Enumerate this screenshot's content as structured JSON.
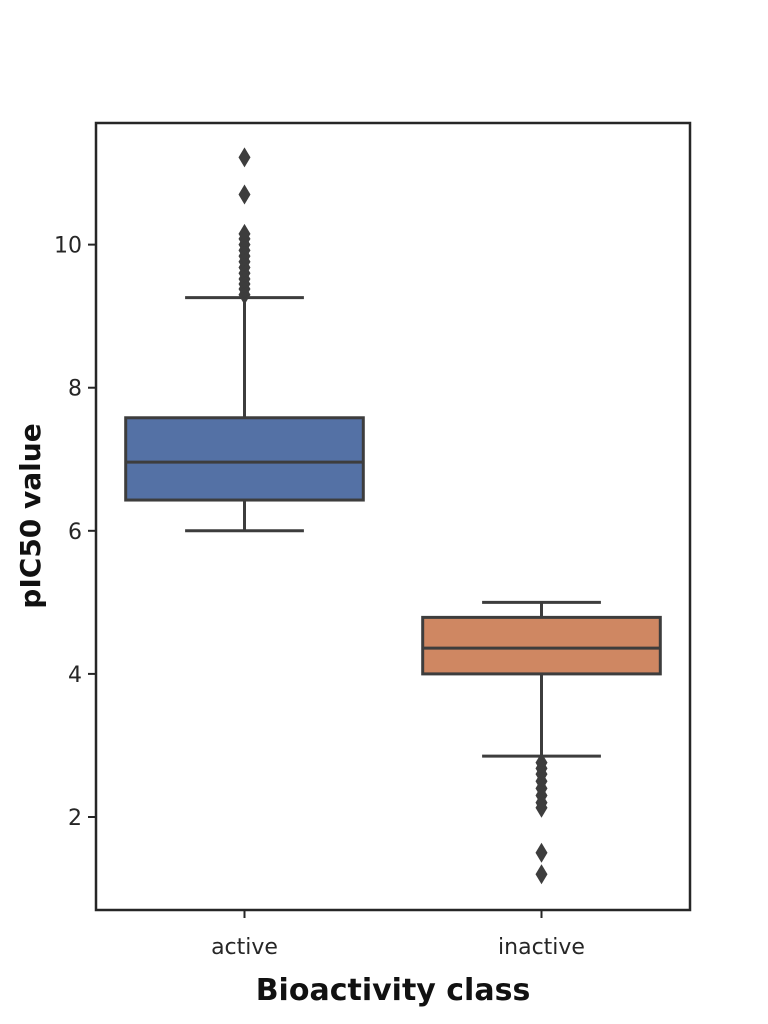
{
  "chart_data": {
    "type": "box",
    "xlabel": "Bioactivity class",
    "ylabel": "pIC50 value",
    "ylim": [
      0.7,
      11.7
    ],
    "yticks": [
      "2",
      "4",
      "6",
      "8",
      "10"
    ],
    "grid": false,
    "legend": "none",
    "categories": [
      "active",
      "inactive"
    ],
    "boxes": [
      {
        "category": "active",
        "color": "#5471a5",
        "whisker_low": 6.0,
        "q1": 6.43,
        "median": 6.96,
        "q3": 7.58,
        "whisker_high": 9.26,
        "outliers": [
          9.3,
          9.38,
          9.45,
          9.52,
          9.6,
          9.68,
          9.76,
          9.84,
          9.92,
          10.0,
          10.08,
          10.15,
          10.7,
          11.22
        ]
      },
      {
        "category": "inactive",
        "color": "#cf8762",
        "whisker_low": 2.85,
        "q1": 4.0,
        "median": 4.36,
        "q3": 4.79,
        "whisker_high": 5.0,
        "outliers": [
          2.76,
          2.68,
          2.6,
          2.5,
          2.4,
          2.3,
          2.2,
          2.13,
          1.5,
          1.2
        ]
      }
    ]
  }
}
